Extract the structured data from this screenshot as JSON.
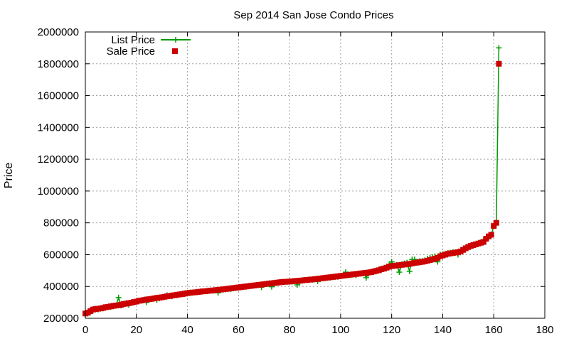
{
  "chart_data": {
    "type": "line",
    "title": "Sep 2014 San Jose Condo Prices",
    "xlabel": "",
    "ylabel": "Price",
    "xlim": [
      0,
      180
    ],
    "ylim": [
      200000,
      2000000
    ],
    "xticks": [
      0,
      20,
      40,
      60,
      80,
      100,
      120,
      140,
      160,
      180
    ],
    "yticks": [
      200000,
      400000,
      600000,
      800000,
      1000000,
      1200000,
      1400000,
      1600000,
      1800000,
      2000000
    ],
    "grid": true,
    "legend_position": "top-left",
    "series": [
      {
        "name": "List Price",
        "style": "line+cross",
        "color": "#009900",
        "x": [
          0,
          1,
          2,
          3,
          4,
          5,
          6,
          7,
          8,
          9,
          10,
          11,
          12,
          13,
          14,
          15,
          16,
          17,
          18,
          19,
          20,
          21,
          22,
          23,
          24,
          25,
          26,
          27,
          28,
          29,
          30,
          31,
          32,
          33,
          34,
          35,
          36,
          37,
          38,
          39,
          40,
          41,
          42,
          43,
          44,
          45,
          46,
          47,
          48,
          49,
          50,
          51,
          52,
          53,
          54,
          55,
          56,
          57,
          58,
          59,
          60,
          61,
          62,
          63,
          64,
          65,
          66,
          67,
          68,
          69,
          70,
          71,
          72,
          73,
          74,
          75,
          76,
          77,
          78,
          79,
          80,
          81,
          82,
          83,
          84,
          85,
          86,
          87,
          88,
          89,
          90,
          91,
          92,
          93,
          94,
          95,
          96,
          97,
          98,
          99,
          100,
          101,
          102,
          103,
          104,
          105,
          106,
          107,
          108,
          109,
          110,
          111,
          112,
          113,
          114,
          115,
          116,
          117,
          118,
          119,
          120,
          121,
          122,
          123,
          124,
          125,
          126,
          127,
          128,
          129,
          130,
          131,
          132,
          133,
          134,
          135,
          136,
          137,
          138,
          139,
          140,
          141,
          142,
          143,
          144,
          145,
          146,
          147,
          148,
          149,
          150,
          151,
          152,
          153,
          154,
          155,
          156,
          157,
          158,
          159,
          160,
          161,
          162
        ],
        "values": [
          225000,
          230000,
          245000,
          250000,
          255000,
          255000,
          260000,
          262000,
          268000,
          270000,
          272000,
          275000,
          280000,
          330000,
          280000,
          285000,
          295000,
          285000,
          298000,
          300000,
          305000,
          310000,
          310000,
          315000,
          300000,
          318000,
          320000,
          325000,
          315000,
          325000,
          330000,
          335000,
          345000,
          340000,
          338000,
          345000,
          345000,
          350000,
          355000,
          358000,
          360000,
          362000,
          362000,
          363000,
          365000,
          368000,
          370000,
          370000,
          372000,
          375000,
          372000,
          375000,
          360000,
          378000,
          380000,
          382000,
          385000,
          383000,
          388000,
          390000,
          392000,
          395000,
          400000,
          398000,
          402000,
          405000,
          405000,
          408000,
          410000,
          395000,
          415000,
          418000,
          420000,
          398000,
          415000,
          422000,
          425000,
          428000,
          428000,
          428000,
          430000,
          430000,
          435000,
          410000,
          430000,
          438000,
          440000,
          440000,
          445000,
          442000,
          448000,
          432000,
          445000,
          450000,
          452000,
          455000,
          455000,
          458000,
          460000,
          460000,
          465000,
          470000,
          490000,
          472000,
          475000,
          478000,
          470000,
          480000,
          482000,
          485000,
          455000,
          480000,
          490000,
          495000,
          500000,
          505000,
          510000,
          515000,
          525000,
          535000,
          555000,
          530000,
          535000,
          490000,
          540000,
          545000,
          550000,
          495000,
          570000,
          570000,
          555000,
          560000,
          560000,
          565000,
          575000,
          580000,
          585000,
          590000,
          555000,
          600000,
          602000,
          605000,
          610000,
          612000,
          615000,
          615000,
          600000,
          620000,
          630000,
          640000,
          650000,
          655000,
          660000,
          665000,
          670000,
          680000,
          690000,
          700000,
          710000,
          720000,
          780000,
          800000,
          1900000
        ]
      },
      {
        "name": "Sale Price",
        "style": "square",
        "color": "#cc0000",
        "x": [
          0,
          1,
          2,
          3,
          4,
          5,
          6,
          7,
          8,
          9,
          10,
          11,
          12,
          13,
          14,
          15,
          16,
          17,
          18,
          19,
          20,
          21,
          22,
          23,
          24,
          25,
          26,
          27,
          28,
          29,
          30,
          31,
          32,
          33,
          34,
          35,
          36,
          37,
          38,
          39,
          40,
          41,
          42,
          43,
          44,
          45,
          46,
          47,
          48,
          49,
          50,
          51,
          52,
          53,
          54,
          55,
          56,
          57,
          58,
          59,
          60,
          61,
          62,
          63,
          64,
          65,
          66,
          67,
          68,
          69,
          70,
          71,
          72,
          73,
          74,
          75,
          76,
          77,
          78,
          79,
          80,
          81,
          82,
          83,
          84,
          85,
          86,
          87,
          88,
          89,
          90,
          91,
          92,
          93,
          94,
          95,
          96,
          97,
          98,
          99,
          100,
          101,
          102,
          103,
          104,
          105,
          106,
          107,
          108,
          109,
          110,
          111,
          112,
          113,
          114,
          115,
          116,
          117,
          118,
          119,
          120,
          121,
          122,
          123,
          124,
          125,
          126,
          127,
          128,
          129,
          130,
          131,
          132,
          133,
          134,
          135,
          136,
          137,
          138,
          139,
          140,
          141,
          142,
          143,
          144,
          145,
          146,
          147,
          148,
          149,
          150,
          151,
          152,
          153,
          154,
          155,
          156,
          157,
          158,
          159,
          160,
          161,
          162
        ],
        "values": [
          230000,
          235000,
          245000,
          255000,
          258000,
          260000,
          262000,
          265000,
          270000,
          272000,
          275000,
          278000,
          280000,
          282000,
          285000,
          290000,
          292000,
          295000,
          298000,
          302000,
          305000,
          310000,
          312000,
          315000,
          318000,
          320000,
          322000,
          325000,
          328000,
          330000,
          332000,
          335000,
          338000,
          340000,
          343000,
          345000,
          348000,
          350000,
          352000,
          355000,
          358000,
          360000,
          362000,
          363000,
          365000,
          367000,
          369000,
          370000,
          372000,
          374000,
          375000,
          377000,
          379000,
          380000,
          382000,
          384000,
          386000,
          388000,
          390000,
          392000,
          394000,
          396000,
          398000,
          400000,
          402000,
          404000,
          406000,
          408000,
          410000,
          412000,
          414000,
          416000,
          418000,
          420000,
          422000,
          424000,
          426000,
          428000,
          429000,
          430000,
          431000,
          432000,
          434000,
          435000,
          436000,
          438000,
          440000,
          441000,
          443000,
          444000,
          446000,
          448000,
          450000,
          452000,
          454000,
          456000,
          458000,
          460000,
          462000,
          464000,
          466000,
          468000,
          470000,
          472000,
          474000,
          476000,
          478000,
          480000,
          482000,
          484000,
          486000,
          488000,
          490000,
          494000,
          498000,
          502000,
          508000,
          512000,
          518000,
          524000,
          528000,
          530000,
          532000,
          534000,
          536000,
          538000,
          540000,
          542000,
          545000,
          548000,
          550000,
          553000,
          555000,
          558000,
          562000,
          566000,
          570000,
          575000,
          580000,
          590000,
          595000,
          600000,
          605000,
          608000,
          610000,
          613000,
          615000,
          620000,
          630000,
          640000,
          648000,
          655000,
          660000,
          665000,
          670000,
          675000,
          680000,
          700000,
          715000,
          725000,
          780000,
          800000,
          1800000
        ]
      }
    ]
  }
}
